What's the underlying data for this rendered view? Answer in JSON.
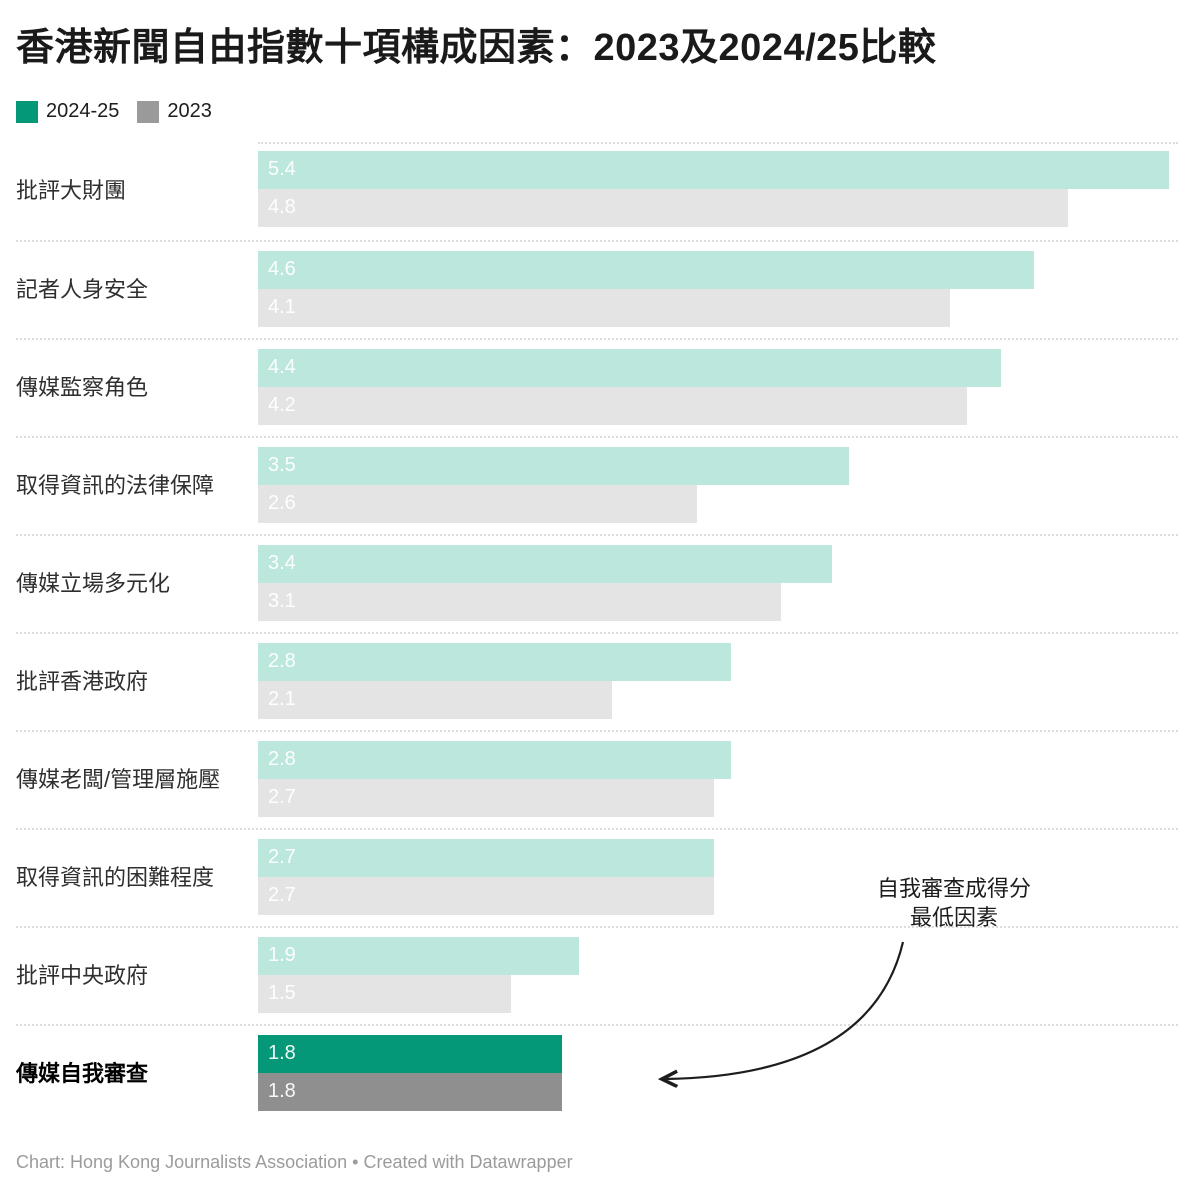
{
  "title": "香港新聞自由指數十項構成因素：2023及2024/25比較",
  "legend": {
    "items": [
      {
        "label": "2024-25",
        "color": "#049778"
      },
      {
        "label": "2023",
        "color": "#9a9a9a"
      }
    ]
  },
  "chart_data": {
    "type": "bar",
    "orientation": "horizontal",
    "title": "香港新聞自由指數十項構成因素：2023及2024/25比較",
    "categories": [
      "批評大財團",
      "記者人身安全",
      "傳媒監察角色",
      "取得資訊的法律保障",
      "傳媒立場多元化",
      "批評香港政府",
      "傳媒老闆/管理層施壓",
      "取得資訊的困難程度",
      "批評中央政府",
      "傳媒自我審查"
    ],
    "series": [
      {
        "name": "2024-25",
        "values": [
          5.4,
          4.6,
          4.4,
          3.5,
          3.4,
          2.8,
          2.8,
          2.7,
          1.9,
          1.8
        ]
      },
      {
        "name": "2023",
        "values": [
          4.8,
          4.1,
          4.2,
          2.6,
          3.1,
          2.1,
          2.7,
          2.7,
          1.5,
          1.8
        ]
      }
    ],
    "xlim": [
      0,
      5.4
    ],
    "grid": false,
    "legend_position": "top-left",
    "highlight_index": 9,
    "highlight_category": "傳媒自我審查",
    "annotation": "自我審查成得分 最低因素"
  },
  "annotation": {
    "line1": "自我審查成得分",
    "line2": "最低因素"
  },
  "colors": {
    "series1_faded": "#bce7dd",
    "series2_faded": "#e4e4e4",
    "series1_full": "#049778",
    "series2_full": "#8f8f8f",
    "separator": "#dcdcdc",
    "value_label": "#ffffff",
    "arrow": "#1d1d1d"
  },
  "footer": "Chart: Hong Kong Journalists Association • Created with Datawrapper"
}
